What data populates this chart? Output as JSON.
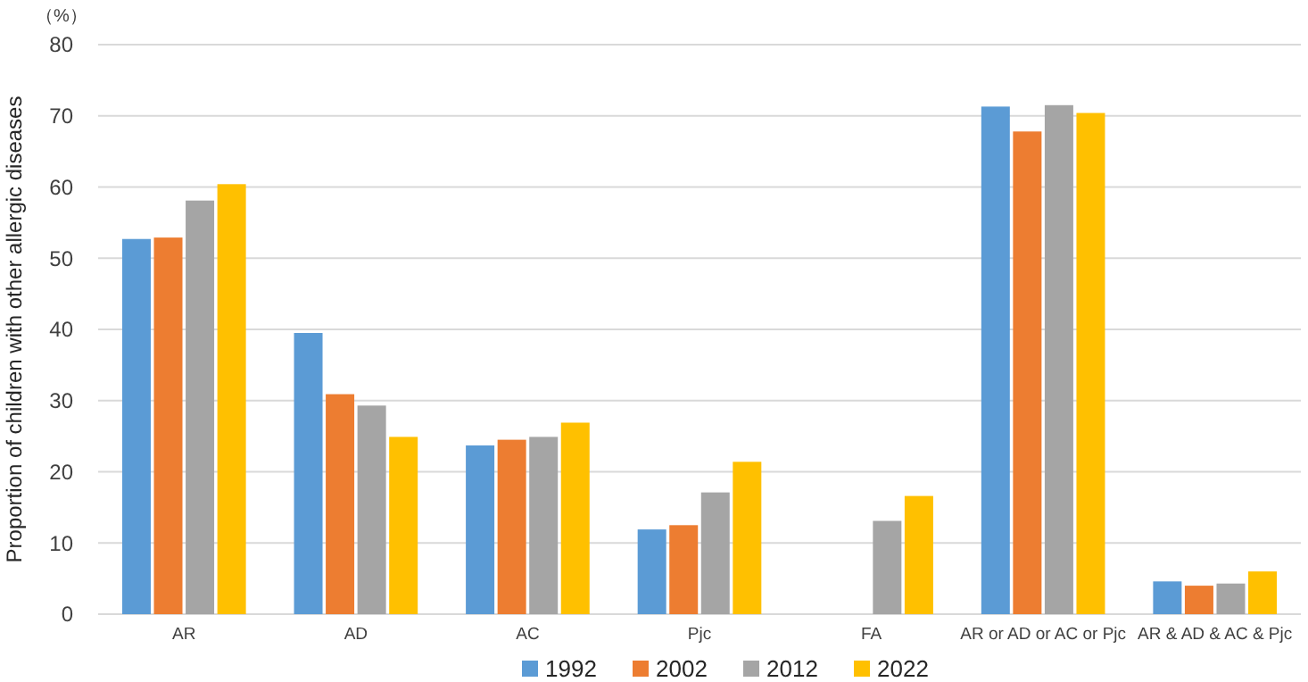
{
  "chart_data": {
    "type": "bar",
    "ylabel": "Proportion of children with other allergic diseases",
    "annotations": [
      "（%）"
    ],
    "categories": [
      "AR",
      "AD",
      "AC",
      "Pjc",
      "FA",
      "AR or AD or AC or Pjc",
      "AR & AD & AC & Pjc"
    ],
    "series": [
      {
        "name": "1992",
        "color": "#5b9bd5",
        "values": [
          52.7,
          39.5,
          23.7,
          11.9,
          null,
          71.3,
          4.6
        ]
      },
      {
        "name": "2002",
        "color": "#ed7d31",
        "values": [
          52.9,
          30.9,
          24.5,
          12.5,
          null,
          67.8,
          4.0
        ]
      },
      {
        "name": "2012",
        "color": "#a5a5a5",
        "values": [
          58.1,
          29.3,
          24.9,
          17.1,
          13.1,
          71.5,
          4.3
        ]
      },
      {
        "name": "2022",
        "color": "#ffc000",
        "values": [
          60.4,
          24.9,
          26.9,
          21.4,
          16.6,
          70.4,
          6.0
        ]
      }
    ],
    "ylim": [
      0,
      80
    ],
    "yticks": [
      0,
      10,
      20,
      30,
      40,
      50,
      60,
      70,
      80
    ],
    "grid": "y",
    "legend": "bottom"
  }
}
